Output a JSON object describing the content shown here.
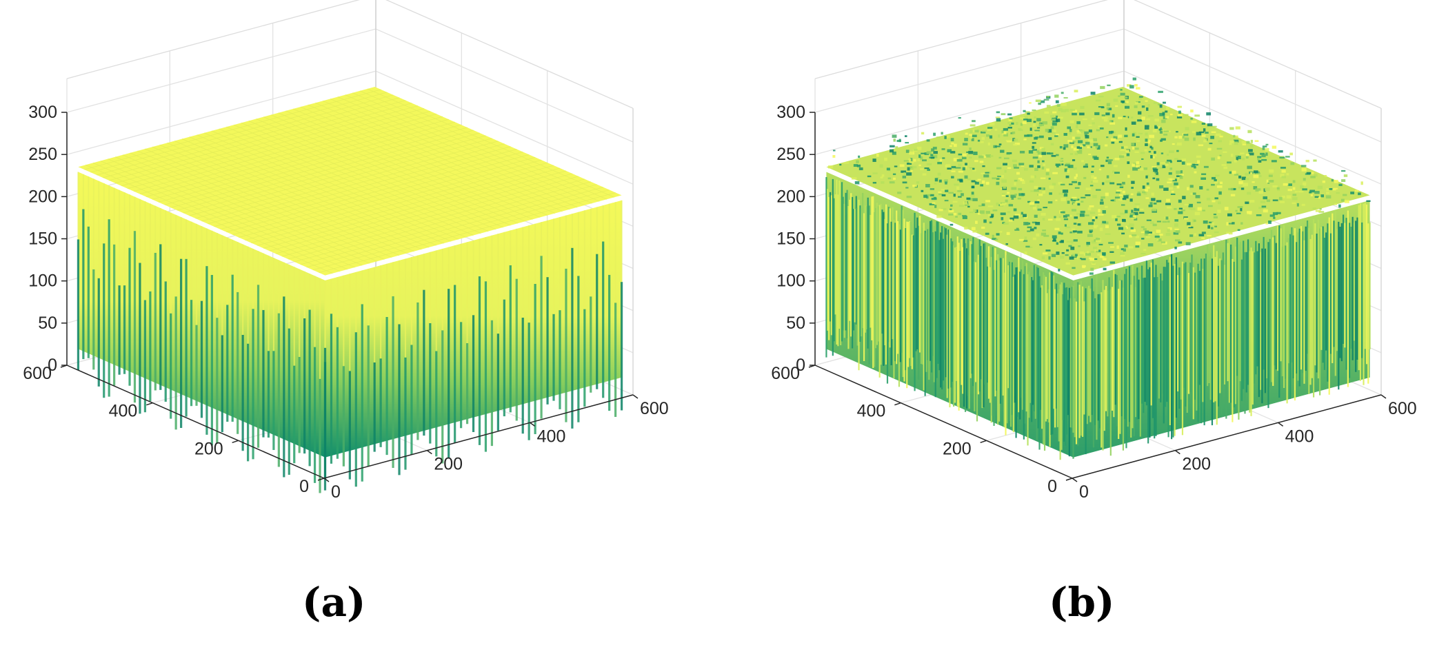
{
  "chart_data": [
    {
      "type": "surface3d",
      "panel_label": "(a)",
      "x_ticks": [
        0,
        200,
        400,
        600
      ],
      "y_ticks": [
        0,
        200,
        400,
        600
      ],
      "z_ticks": [
        0,
        50,
        100,
        150,
        200,
        250,
        300
      ],
      "xlim": [
        0,
        600
      ],
      "ylim": [
        0,
        600
      ],
      "zlim": [
        0,
        300
      ],
      "surface_top_level": 230,
      "surface_bottom_level": 0,
      "pattern": "periodic",
      "grid": true,
      "colormap": [
        "#0f8a6c",
        "#39a86a",
        "#a7d85a",
        "#f4f95a"
      ]
    },
    {
      "type": "surface3d",
      "panel_label": "(b)",
      "x_ticks": [
        0,
        200,
        400,
        600
      ],
      "y_ticks": [
        0,
        200,
        400,
        600
      ],
      "z_ticks": [
        0,
        50,
        100,
        150,
        200,
        250,
        300
      ],
      "xlim": [
        0,
        600
      ],
      "ylim": [
        0,
        600
      ],
      "zlim": [
        0,
        300
      ],
      "surface_top_level": 230,
      "surface_bottom_level": 0,
      "pattern": "random",
      "grid": true,
      "colormap": [
        "#0f8a6c",
        "#39a86a",
        "#a7d85a",
        "#f4f95a"
      ]
    }
  ]
}
